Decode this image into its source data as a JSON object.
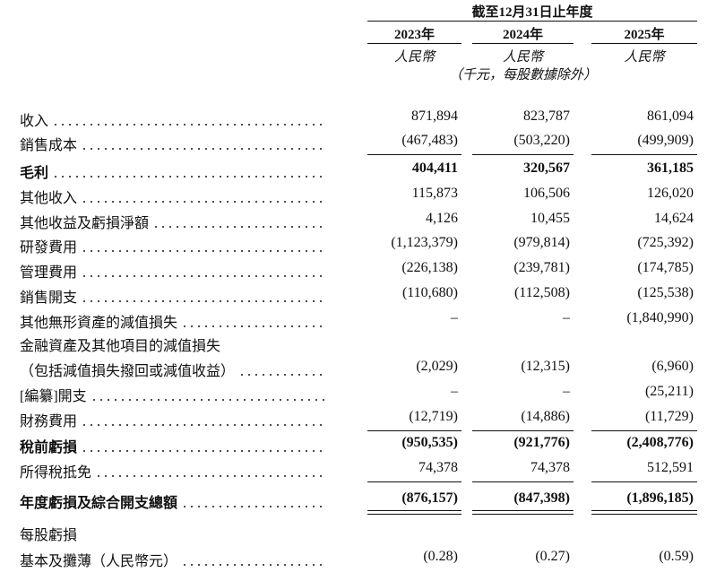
{
  "header": {
    "period_label": "截至12月31日止年度",
    "years": [
      "2023年",
      "2024年",
      "2025年"
    ],
    "currency": [
      "人民幣",
      "人民幣",
      "人民幣"
    ],
    "unit_note": "（千元，每股數據除外）"
  },
  "table": {
    "rows": [
      {
        "label": "收入",
        "values": [
          "871,894",
          "823,787",
          "861,094"
        ]
      },
      {
        "label": "銷售成本",
        "values": [
          "(467,483)",
          "(503,220)",
          "(499,909)"
        ],
        "rule_below": "single"
      },
      {
        "label": "毛利",
        "values": [
          "404,411",
          "320,567",
          "361,185"
        ],
        "bold": true
      },
      {
        "label": "其他收入",
        "values": [
          "115,873",
          "106,506",
          "126,020"
        ]
      },
      {
        "label": "其他收益及虧損淨額",
        "values": [
          "4,126",
          "10,455",
          "14,624"
        ]
      },
      {
        "label": "研發費用",
        "values": [
          "(1,123,379)",
          "(979,814)",
          "(725,392)"
        ]
      },
      {
        "label": "管理費用",
        "values": [
          "(226,138)",
          "(239,781)",
          "(174,785)"
        ]
      },
      {
        "label": "銷售開支",
        "values": [
          "(110,680)",
          "(112,508)",
          "(125,538)"
        ]
      },
      {
        "label": "其他無形資產的減值損失",
        "values": [
          "–",
          "–",
          "(1,840,990)"
        ]
      },
      {
        "label": "金融資產及其他項目的減值損失"
      },
      {
        "label": "（包括減值損失撥回或減值收益）",
        "values": [
          "(2,029)",
          "(12,315)",
          "(6,960)"
        ]
      },
      {
        "label": "[編纂]開支",
        "values": [
          "–",
          "–",
          "(25,211)"
        ]
      },
      {
        "label": "財務費用",
        "values": [
          "(12,719)",
          "(14,886)",
          "(11,729)"
        ],
        "rule_below": "single"
      },
      {
        "label": "稅前虧損",
        "values": [
          "(950,535)",
          "(921,776)",
          "(2,408,776)"
        ],
        "bold": true
      },
      {
        "label": "所得稅抵免",
        "values": [
          "74,378",
          "74,378",
          "512,591"
        ],
        "rule_below": "single"
      },
      {
        "label": "年度虧損及綜合開支總額",
        "values": [
          "(876,157)",
          "(847,398)",
          "(1,896,185)"
        ],
        "bold": true,
        "rule_below": "double"
      },
      {
        "label": "每股虧損"
      },
      {
        "label": "基本及攤薄（人民幣元）",
        "values": [
          "(0.28)",
          "(0.27)",
          "(0.59)"
        ]
      }
    ]
  }
}
